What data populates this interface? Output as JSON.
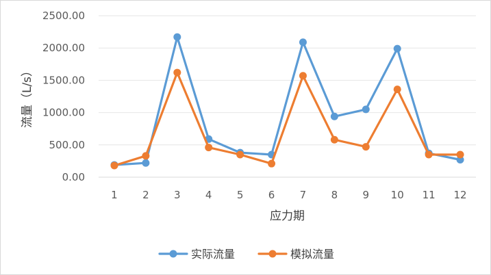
{
  "chart_data": {
    "type": "line",
    "title": "",
    "xlabel": "应力期",
    "ylabel": "流量（L/s）",
    "categories": [
      "1",
      "2",
      "3",
      "4",
      "5",
      "6",
      "7",
      "8",
      "9",
      "10",
      "11",
      "12"
    ],
    "ylim": [
      0,
      2500
    ],
    "yticks": [
      "0.00",
      "500.00",
      "1000.00",
      "1500.00",
      "2000.00",
      "2500.00"
    ],
    "grid": true,
    "legend_position": "bottom",
    "series": [
      {
        "name": "实际流量",
        "color": "#5B9BD5",
        "values": [
          190,
          220,
          2170,
          590,
          380,
          350,
          2090,
          940,
          1050,
          1990,
          370,
          270
        ]
      },
      {
        "name": "模拟流量",
        "color": "#ED7D31",
        "values": [
          180,
          330,
          1620,
          460,
          350,
          210,
          1570,
          580,
          470,
          1360,
          350,
          350
        ]
      }
    ]
  }
}
